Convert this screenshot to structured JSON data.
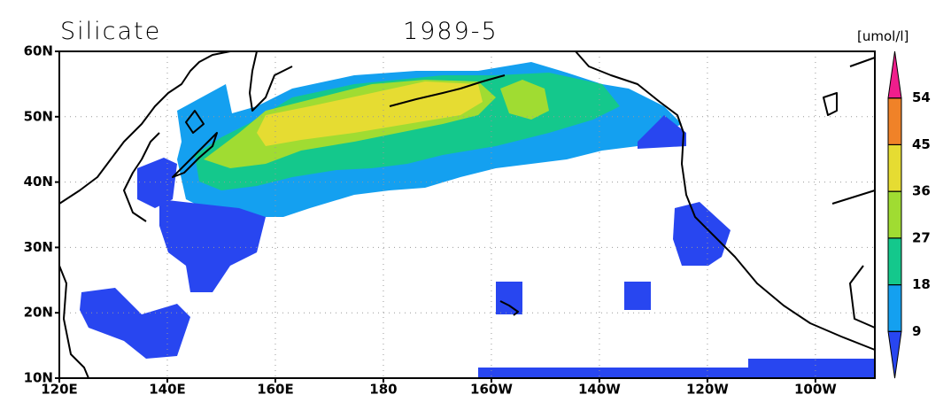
{
  "title": "Silicate",
  "date": "1989-5",
  "units": "[umol/l]",
  "xlim": [
    120,
    271
  ],
  "ylim": [
    10,
    60
  ],
  "lon_ticks": [
    {
      "value": 120,
      "label": "120E"
    },
    {
      "value": 140,
      "label": "140E"
    },
    {
      "value": 160,
      "label": "160E"
    },
    {
      "value": 180,
      "label": "180"
    },
    {
      "value": 200,
      "label": "160W"
    },
    {
      "value": 220,
      "label": "140W"
    },
    {
      "value": 240,
      "label": "120W"
    },
    {
      "value": 260,
      "label": "100W"
    }
  ],
  "lat_ticks": [
    {
      "value": 10,
      "label": "10N"
    },
    {
      "value": 20,
      "label": "20N"
    },
    {
      "value": 30,
      "label": "30N"
    },
    {
      "value": 40,
      "label": "40N"
    },
    {
      "value": 50,
      "label": "50N"
    },
    {
      "value": 60,
      "label": "60N"
    }
  ],
  "grid": true,
  "colorbar": {
    "levels": [
      9,
      18,
      27,
      36,
      45,
      54
    ],
    "colors": [
      "#2846f0",
      "#14a0f0",
      "#14c88c",
      "#a0dc32",
      "#e6dc32",
      "#f08228",
      "#f01e8c"
    ]
  }
}
